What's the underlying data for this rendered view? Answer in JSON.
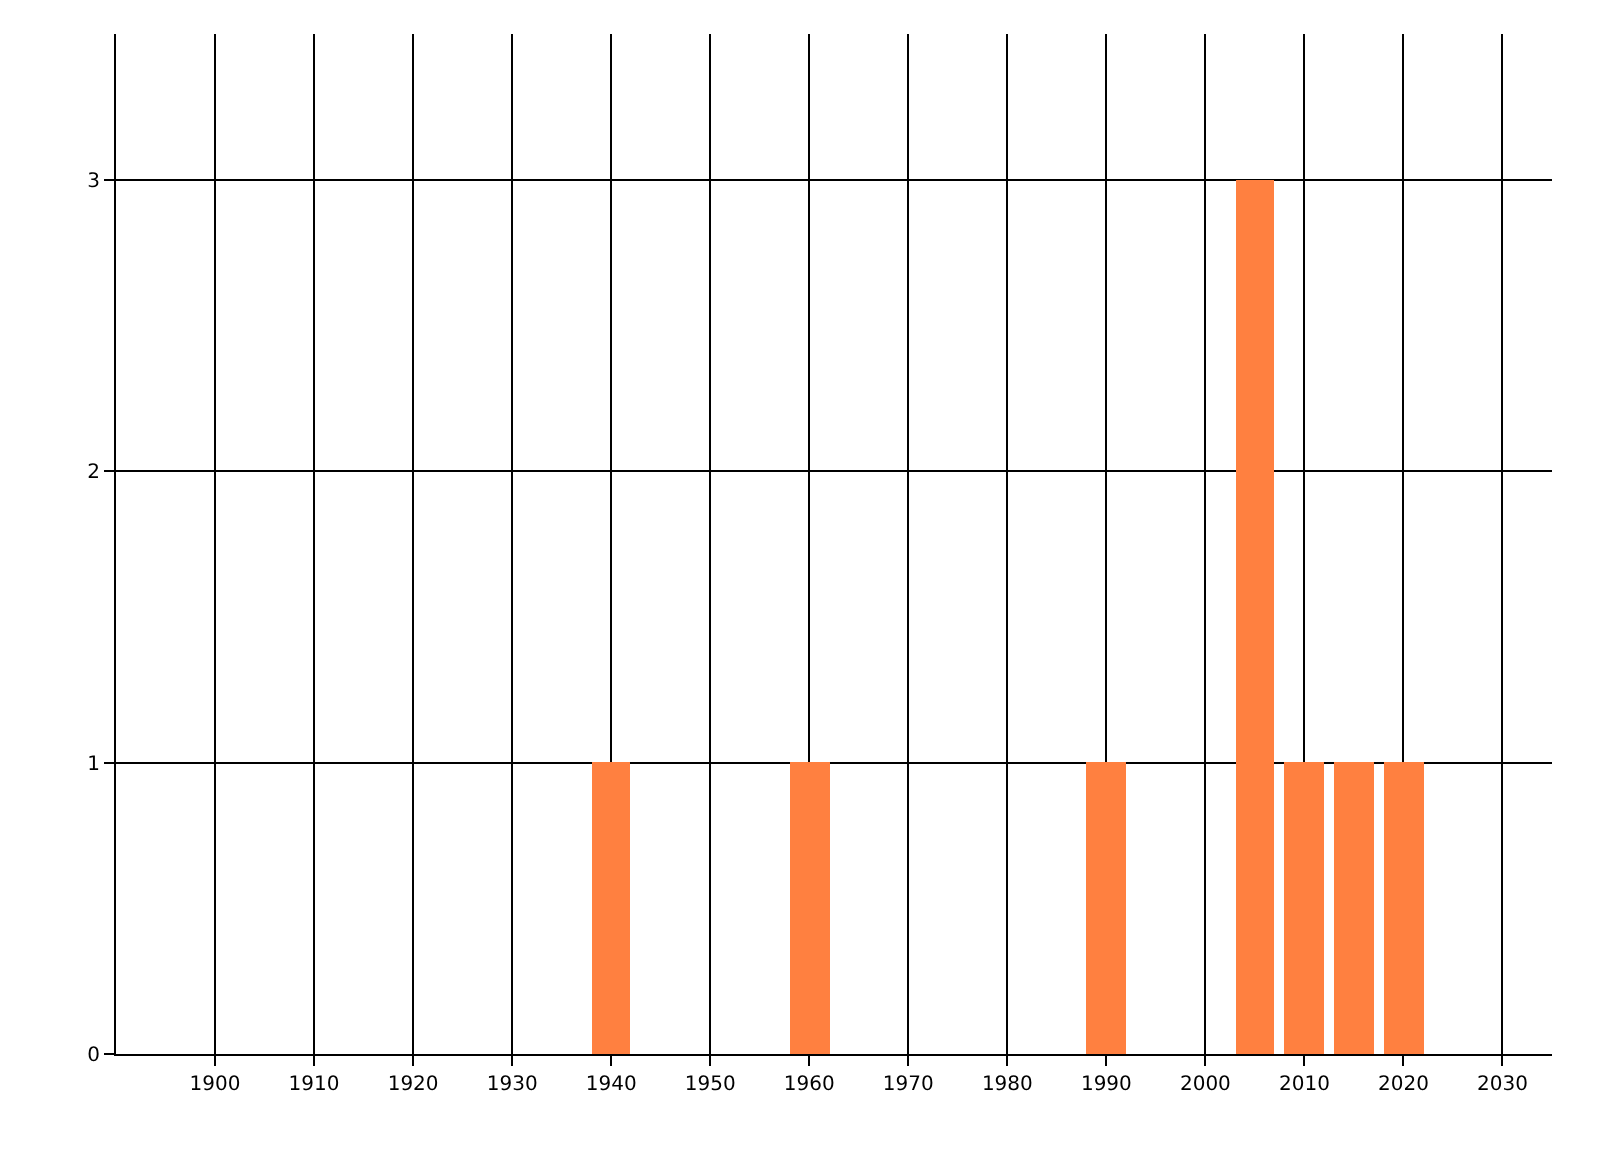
{
  "chart_data": {
    "type": "bar",
    "x": [
      1940,
      1960,
      1990,
      2005,
      2010,
      2015,
      2020
    ],
    "values": [
      1,
      1,
      1,
      3,
      1,
      1,
      1
    ],
    "color": "#ff8040",
    "xlim": [
      1890,
      2035
    ],
    "xticks": [
      1900,
      1910,
      1920,
      1930,
      1940,
      1950,
      1960,
      1970,
      1980,
      1990,
      2000,
      2010,
      2020,
      2030
    ],
    "ylim": [
      0,
      3.5
    ],
    "yticks": [
      0,
      1,
      2,
      3
    ],
    "grid": true
  }
}
